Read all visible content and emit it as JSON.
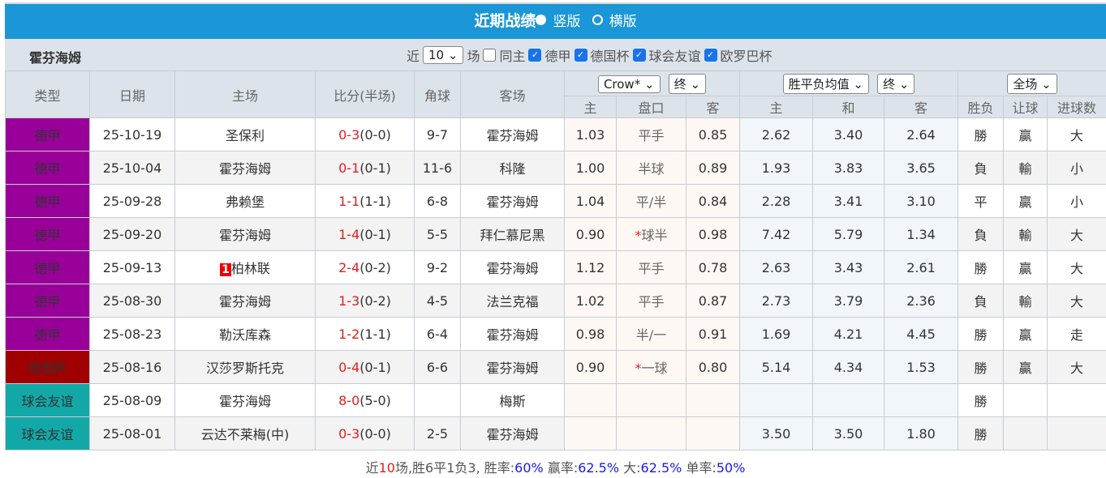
{
  "header": {
    "title": "近期战绩",
    "opt_vertical": "竖版",
    "opt_horizontal": "横版"
  },
  "sub": {
    "team": "霍芬海姆",
    "near": "近",
    "count": "10",
    "games": "场",
    "same_home": "同主",
    "leagues": [
      "德甲",
      "德国杯",
      "球会友谊",
      "欧罗巴杯"
    ]
  },
  "columns": {
    "type": "类型",
    "date": "日期",
    "home": "主场",
    "score": "比分(半场)",
    "corner": "角球",
    "away": "客场",
    "company": "Crow*",
    "final1": "终",
    "odds_type": "胜平负均值",
    "final2": "终",
    "scope": "全场",
    "ah_home": "主",
    "ah_line": "盘口",
    "ah_away": "客",
    "eu_home": "主",
    "eu_draw": "和",
    "eu_away": "客",
    "wl": "胜负",
    "hc": "让球",
    "ou": "进球数"
  },
  "colors": {
    "bundesliga": "#990099",
    "cup": "#a00000",
    "friendly": "#13a8a8",
    "header_bar": "#1b96d6"
  },
  "rows": [
    {
      "type": "德甲",
      "tc": "#990099",
      "date": "25-10-19",
      "home": "圣保利",
      "hg": false,
      "score": "0-3",
      "half": "(0-0)",
      "corner": "9-7",
      "away": "霍芬海姆",
      "ag": true,
      "ah_h": "1.03",
      "line": "平手",
      "ah_a": "0.85",
      "eu_h": "2.62",
      "eu_d": "3.40",
      "eu_a": "2.64",
      "wl": "勝",
      "hc": "贏",
      "ou": "大"
    },
    {
      "type": "德甲",
      "tc": "#990099",
      "date": "25-10-04",
      "home": "霍芬海姆",
      "hg": true,
      "score": "0-1",
      "half": "(0-1)",
      "corner": "11-6",
      "away": "科隆",
      "ag": false,
      "ah_h": "1.00",
      "line": "半球",
      "ah_a": "0.89",
      "eu_h": "1.93",
      "eu_d": "3.83",
      "eu_a": "3.65",
      "wl": "負",
      "hc": "輸",
      "ou": "小"
    },
    {
      "type": "德甲",
      "tc": "#990099",
      "date": "25-09-28",
      "home": "弗赖堡",
      "hg": false,
      "score": "1-1",
      "half": "(1-1)",
      "corner": "6-8",
      "away": "霍芬海姆",
      "ag": true,
      "ah_h": "1.04",
      "line": "平/半",
      "ah_a": "0.84",
      "eu_h": "2.28",
      "eu_d": "3.41",
      "eu_a": "3.10",
      "wl": "平",
      "hc": "贏",
      "ou": "小"
    },
    {
      "type": "德甲",
      "tc": "#990099",
      "date": "25-09-20",
      "home": "霍芬海姆",
      "hg": true,
      "score": "1-4",
      "half": "(0-1)",
      "corner": "5-5",
      "away": "拜仁慕尼黑",
      "ag": false,
      "ah_h": "0.90",
      "star": "*",
      "line": "球半",
      "ah_a": "0.98",
      "eu_h": "7.42",
      "eu_d": "5.79",
      "eu_a": "1.34",
      "wl": "負",
      "hc": "輸",
      "ou": "大"
    },
    {
      "type": "德甲",
      "tc": "#990099",
      "date": "25-09-13",
      "badge": "1",
      "home": "柏林联",
      "hg": false,
      "score": "2-4",
      "half": "(0-2)",
      "corner": "9-2",
      "away": "霍芬海姆",
      "ag": true,
      "ah_h": "1.12",
      "line": "平手",
      "ah_a": "0.78",
      "eu_h": "2.63",
      "eu_d": "3.43",
      "eu_a": "2.61",
      "wl": "勝",
      "hc": "贏",
      "ou": "大"
    },
    {
      "type": "德甲",
      "tc": "#990099",
      "date": "25-08-30",
      "home": "霍芬海姆",
      "hg": true,
      "score": "1-3",
      "half": "(0-2)",
      "corner": "4-5",
      "away": "法兰克福",
      "ag": false,
      "ah_h": "1.02",
      "line": "平手",
      "ah_a": "0.87",
      "eu_h": "2.73",
      "eu_d": "3.79",
      "eu_a": "2.36",
      "wl": "負",
      "hc": "輸",
      "ou": "大"
    },
    {
      "type": "德甲",
      "tc": "#990099",
      "date": "25-08-23",
      "home": "勒沃库森",
      "hg": false,
      "score": "1-2",
      "half": "(1-1)",
      "corner": "6-4",
      "away": "霍芬海姆",
      "ag": true,
      "ah_h": "0.98",
      "line": "半/一",
      "ah_a": "0.91",
      "eu_h": "1.69",
      "eu_d": "4.21",
      "eu_a": "4.45",
      "wl": "勝",
      "hc": "贏",
      "ou": "走"
    },
    {
      "type": "德国杯",
      "tc": "#a00000",
      "date": "25-08-16",
      "home": "汉莎罗斯托克",
      "hg": false,
      "score": "0-4",
      "half": "(0-1)",
      "corner": "6-6",
      "away": "霍芬海姆",
      "ag": true,
      "ah_h": "0.90",
      "star": "*",
      "line": "一球",
      "ah_a": "0.80",
      "eu_h": "5.14",
      "eu_d": "4.34",
      "eu_a": "1.53",
      "wl": "勝",
      "hc": "贏",
      "ou": "大"
    },
    {
      "type": "球会友谊",
      "tc": "#13a8a8",
      "date": "25-08-09",
      "home": "霍芬海姆",
      "hg": true,
      "score": "8-0",
      "half": "(5-0)",
      "corner": "",
      "away": "梅斯",
      "ag": false,
      "ah_h": "",
      "line": "",
      "ah_a": "",
      "eu_h": "",
      "eu_d": "",
      "eu_a": "",
      "wl": "勝",
      "hc": "",
      "ou": ""
    },
    {
      "type": "球会友谊",
      "tc": "#13a8a8",
      "date": "25-08-01",
      "home": "云达不莱梅(中)",
      "hg": false,
      "score": "0-3",
      "half": "(0-0)",
      "corner": "2-5",
      "away": "霍芬海姆",
      "ag": true,
      "ah_h": "",
      "line": "",
      "ah_a": "",
      "eu_h": "3.50",
      "eu_d": "3.50",
      "eu_a": "1.80",
      "wl": "勝",
      "hc": "",
      "ou": ""
    }
  ],
  "summary": {
    "p1": "近",
    "n": "10",
    "p2": "场,胜6平1负3, 胜率:",
    "win": "60%",
    "p3": " 赢率:",
    "hcw": "62.5%",
    "p4": " 大:",
    "over": "62.5%",
    "p5": " 单率:",
    "odd": "50%"
  }
}
